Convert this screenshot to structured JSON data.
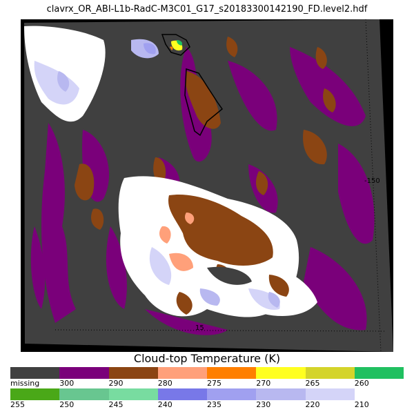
{
  "title": "clavrx_OR_ABI-L1b-RadC-M3C01_G17_s20183300142190_FD.level2.hdf",
  "map": {
    "lat_label": "-150",
    "lon_label": "15"
  },
  "colorbar": {
    "title": "Cloud-top Temperature (K)",
    "row1": [
      {
        "color": "#404040",
        "label": "missing"
      },
      {
        "color": "#7a007a",
        "label": "300"
      },
      {
        "color": "#8b4513",
        "label": "290"
      },
      {
        "color": "#ffa07a",
        "label": "280"
      },
      {
        "color": "#ff7f00",
        "label": "275"
      },
      {
        "color": "#ffff20",
        "label": "270"
      },
      {
        "color": "#d4d42a",
        "label": "265"
      },
      {
        "color": "#20c060",
        "label": "260"
      }
    ],
    "row2": [
      {
        "color": "#4aa818",
        "label": "255"
      },
      {
        "color": "#68c690",
        "label": "250"
      },
      {
        "color": "#78dca0",
        "label": "245"
      },
      {
        "color": "#7878e8",
        "label": "240"
      },
      {
        "color": "#a0a0f0",
        "label": "235"
      },
      {
        "color": "#b8b8f0",
        "label": "230"
      },
      {
        "color": "#d4d4f8",
        "label": "220"
      },
      {
        "color": "#ffffff",
        "label": "210"
      }
    ]
  }
}
